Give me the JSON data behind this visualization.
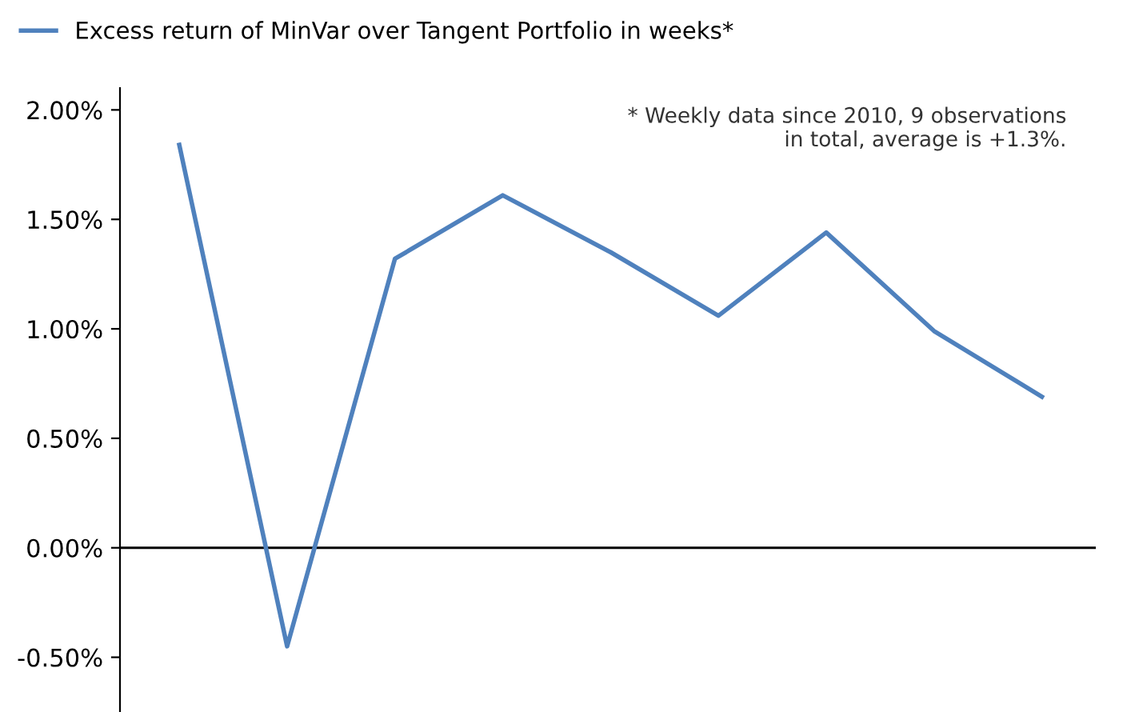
{
  "chart_data": {
    "type": "line",
    "categories": [
      null,
      null,
      null,
      null,
      null,
      null,
      null,
      null,
      null
    ],
    "series": [
      {
        "name": "Excess return of MinVar over Tangent Portfolio in weeks*",
        "color": "#4f81bd",
        "values": [
          1.84,
          -0.45,
          1.32,
          1.61,
          1.35,
          1.06,
          1.44,
          0.99,
          0.69
        ]
      }
    ],
    "ylim": [
      -0.75,
      2.1
    ],
    "yticks": [
      {
        "value": -0.5,
        "label": "-0.50%"
      },
      {
        "value": 0,
        "label": "0.00%"
      },
      {
        "value": 0.5,
        "label": "0.50%"
      },
      {
        "value": 1.0,
        "label": "1.00%"
      },
      {
        "value": 1.5,
        "label": "1.50%"
      },
      {
        "value": 2.0,
        "label": "2.00%"
      }
    ],
    "annotations": [
      "* Weekly data since 2010, 9 observations\nin total, average is +1.3%."
    ],
    "legend": "top",
    "ref_lines": [
      {
        "axis": "y",
        "value": 0,
        "color": "#000000",
        "line_style": "solid"
      }
    ],
    "grid": false,
    "marker": "none",
    "line_style": "solid"
  }
}
